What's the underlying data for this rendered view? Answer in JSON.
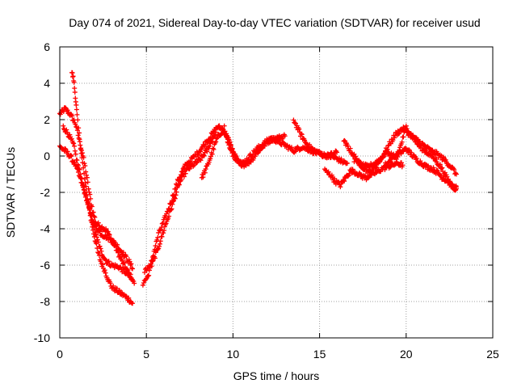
{
  "chart_data": {
    "type": "scatter",
    "title": "Day 074 of 2021, Sidereal Day-to-day VTEC variation (SDTVAR) for receiver usud",
    "xlabel": "GPS time / hours",
    "ylabel": "SDTVAR / TECUs",
    "xlim": [
      0,
      25
    ],
    "ylim": [
      -10,
      6
    ],
    "xticks": [
      "0",
      "5",
      "10",
      "15",
      "20",
      "25"
    ],
    "yticks": [
      "-10",
      "-8",
      "-6",
      "-4",
      "-2",
      "0",
      "2",
      "4",
      "6"
    ],
    "grid": true,
    "marker": "+",
    "series": [
      {
        "name": "SDTVAR",
        "color": "#ff0000",
        "tracks": [
          {
            "x": [
              0.0,
              0.3,
              0.6,
              0.9,
              1.1,
              1.3,
              1.5,
              1.7,
              1.9,
              2.1,
              2.4,
              2.7,
              3.0,
              3.3,
              3.6,
              3.9,
              4.2
            ],
            "y": [
              2.3,
              2.6,
              2.3,
              1.8,
              1.0,
              0.2,
              -0.8,
              -2.0,
              -3.0,
              -3.7,
              -3.9,
              -4.1,
              -4.6,
              -5.2,
              -5.8,
              -6.3,
              -6.8
            ]
          },
          {
            "x": [
              0.7,
              0.8,
              0.9,
              1.0,
              1.2,
              1.4,
              1.6,
              1.8,
              2.0,
              2.2,
              2.4,
              2.6,
              2.8,
              3.0,
              3.3,
              3.6,
              3.9,
              4.2
            ],
            "y": [
              4.6,
              4.2,
              3.3,
              2.2,
              0.5,
              -1.0,
              -2.3,
              -3.5,
              -4.4,
              -5.3,
              -5.9,
              -6.3,
              -6.8,
              -7.2,
              -7.4,
              -7.6,
              -7.8,
              -8.1
            ]
          },
          {
            "x": [
              0.0,
              0.3,
              0.6,
              0.9,
              1.2,
              1.5,
              1.8,
              2.1,
              2.4,
              2.7,
              3.0,
              3.4,
              3.8,
              4.1,
              4.3
            ],
            "y": [
              0.5,
              0.3,
              0.0,
              -0.5,
              -1.3,
              -2.2,
              -3.3,
              -4.4,
              -5.3,
              -5.8,
              -6.0,
              -6.1,
              -6.4,
              -6.7,
              -7.0
            ]
          },
          {
            "x": [
              0.2,
              0.5,
              0.8,
              1.0,
              1.3,
              1.6,
              2.0,
              2.4,
              2.8,
              3.2,
              3.6,
              4.0,
              4.2
            ],
            "y": [
              1.6,
              1.2,
              0.6,
              -0.3,
              -1.4,
              -2.6,
              -3.8,
              -4.3,
              -4.5,
              -4.8,
              -5.3,
              -5.8,
              -6.2
            ]
          },
          {
            "x": [
              4.8,
              5.1,
              5.4,
              5.7,
              6.0,
              6.4,
              6.8,
              7.2,
              7.6,
              8.0,
              8.4,
              8.8,
              9.1,
              9.4,
              9.7,
              10.0
            ],
            "y": [
              -7.0,
              -6.6,
              -5.4,
              -4.3,
              -3.6,
              -2.6,
              -1.4,
              -0.6,
              -0.2,
              0.2,
              0.7,
              1.2,
              1.6,
              1.5,
              1.0,
              0.2
            ]
          },
          {
            "x": [
              4.9,
              5.3,
              5.7,
              6.1,
              6.5,
              6.9,
              7.3,
              7.7,
              8.1,
              8.5,
              8.8,
              9.0
            ],
            "y": [
              -6.3,
              -6.0,
              -5.0,
              -3.8,
              -2.7,
              -1.5,
              -0.8,
              -0.5,
              -0.2,
              0.3,
              0.9,
              1.3
            ]
          },
          {
            "x": [
              8.2,
              8.5,
              8.8,
              9.1,
              9.4,
              9.7,
              10.0,
              10.3,
              10.6,
              11.0,
              11.4,
              11.8,
              12.2,
              12.6,
              13.0
            ],
            "y": [
              -1.2,
              -0.6,
              0.2,
              1.0,
              1.4,
              1.0,
              0.2,
              -0.3,
              -0.5,
              -0.3,
              0.2,
              0.6,
              0.9,
              1.0,
              1.1
            ]
          },
          {
            "x": [
              9.5,
              9.8,
              10.2,
              10.6,
              11.0,
              11.4,
              11.8,
              12.2,
              12.6,
              13.0,
              13.5,
              14.0,
              14.5,
              15.0,
              15.5,
              16.0
            ],
            "y": [
              1.6,
              0.4,
              -0.2,
              -0.4,
              0.0,
              0.4,
              0.7,
              1.0,
              0.8,
              0.6,
              0.3,
              0.5,
              0.3,
              0.1,
              0.0,
              0.2
            ]
          },
          {
            "x": [
              13.5,
              13.9,
              14.3,
              14.7,
              15.1,
              15.5,
              15.9,
              16.3,
              16.6
            ],
            "y": [
              2.0,
              1.2,
              0.6,
              0.3,
              0.1,
              0.0,
              -0.1,
              -0.3,
              -0.4
            ]
          },
          {
            "x": [
              15.3,
              15.6,
              15.9,
              16.2,
              16.5,
              16.8,
              17.1,
              17.4,
              17.7,
              18.0,
              18.3,
              18.6,
              18.9,
              19.2,
              19.5,
              19.8
            ],
            "y": [
              -0.8,
              -1.0,
              -1.4,
              -1.6,
              -1.2,
              -0.8,
              -0.9,
              -1.1,
              -1.2,
              -1.0,
              -0.9,
              -0.7,
              -0.6,
              -0.5,
              -0.4,
              -0.5
            ]
          },
          {
            "x": [
              16.4,
              16.7,
              17.0,
              17.3,
              17.6,
              17.9,
              18.2,
              18.5,
              18.8,
              19.1,
              19.4,
              19.7,
              20.0,
              20.3,
              20.6,
              20.9,
              21.2,
              21.5,
              21.8,
              22.1,
              22.4,
              22.7,
              22.9
            ],
            "y": [
              0.8,
              0.4,
              0.0,
              -0.4,
              -0.7,
              -0.9,
              -0.6,
              -0.2,
              0.2,
              0.1,
              -0.1,
              0.2,
              0.4,
              0.1,
              -0.2,
              -0.4,
              -0.6,
              -0.7,
              -0.9,
              -1.2,
              -1.4,
              -1.7,
              -1.8
            ]
          },
          {
            "x": [
              17.0,
              17.4,
              17.8,
              18.2,
              18.6,
              19.0,
              19.4,
              19.8,
              20.2,
              20.6,
              21.0,
              21.4,
              21.8,
              22.2,
              22.6,
              22.9
            ],
            "y": [
              -0.2,
              -0.5,
              -0.6,
              -0.4,
              -0.1,
              0.6,
              1.2,
              1.5,
              1.2,
              0.9,
              0.6,
              0.3,
              0.1,
              -0.2,
              -0.6,
              -1.0
            ]
          },
          {
            "x": [
              18.8,
              19.2,
              19.6,
              20.0,
              20.4,
              20.8,
              21.2,
              21.6,
              22.0,
              22.4,
              22.8,
              22.9
            ],
            "y": [
              -0.5,
              -0.2,
              0.3,
              1.6,
              1.0,
              0.5,
              0.2,
              -0.1,
              -0.6,
              -1.3,
              -1.8,
              -1.7
            ]
          }
        ]
      }
    ]
  }
}
